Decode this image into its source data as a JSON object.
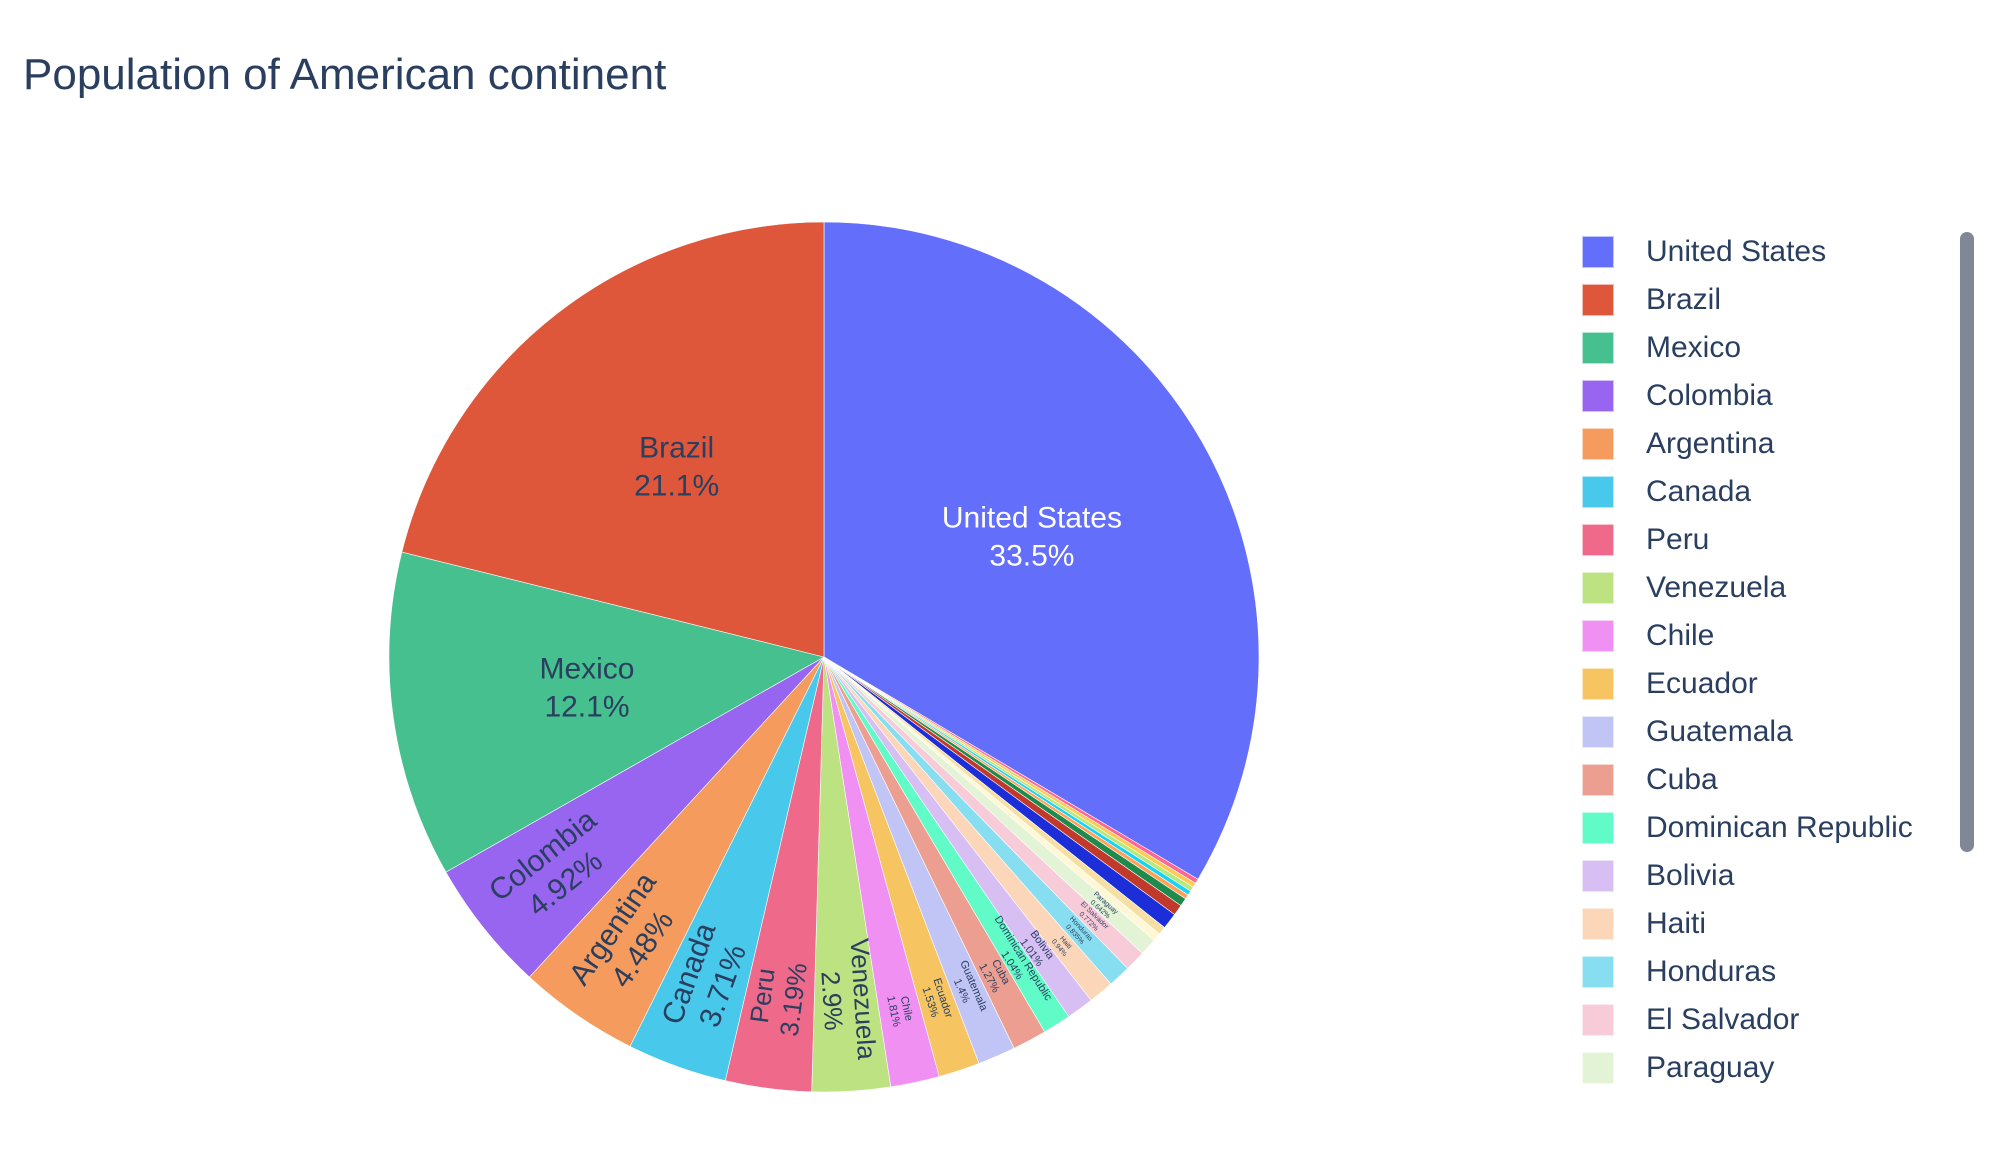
{
  "chart_data": {
    "type": "pie",
    "title": "Population of American continent",
    "direction": "clockwise",
    "start_angle_deg": 0,
    "slices": [
      {
        "label": "United States",
        "percent": 33.5,
        "text_label": "33.5%",
        "color": "#636efa",
        "text_color": "#ffffff",
        "label_mode": "inside"
      },
      {
        "label": "",
        "percent": 0.17,
        "color": "#ff6692",
        "label_mode": "none"
      },
      {
        "label": "",
        "percent": 0.17,
        "color": "#fecb52",
        "label_mode": "none"
      },
      {
        "label": "",
        "percent": 0.17,
        "color": "#b6e880",
        "label_mode": "none"
      },
      {
        "label": "",
        "percent": 0.17,
        "color": "#19d3f3",
        "label_mode": "none"
      },
      {
        "label": "",
        "percent": 0.17,
        "color": "#ffa15a",
        "label_mode": "none"
      },
      {
        "label": "",
        "percent": 0.3,
        "color": "#1e8a4c",
        "label_mode": "none"
      },
      {
        "label": "",
        "percent": 0.4,
        "color": "#c0392b",
        "label_mode": "none"
      },
      {
        "label": "",
        "percent": 0.6,
        "color": "#1c2ed8",
        "label_mode": "none"
      },
      {
        "label": "",
        "percent": 0.3,
        "color": "#f6dfa2",
        "label_mode": "none"
      },
      {
        "label": "",
        "percent": 0.3,
        "color": "#fff7d6",
        "label_mode": "none"
      },
      {
        "label": "Paraguay",
        "percent": 0.642,
        "text_label": "0.642%",
        "color": "#e2f4d5",
        "label_mode": "tiny"
      },
      {
        "label": "El Salvador",
        "percent": 0.772,
        "text_label": "0.772%",
        "color": "#f8cbd9",
        "label_mode": "tiny"
      },
      {
        "label": "Honduras",
        "percent": 0.835,
        "text_label": "0.835%",
        "color": "#87def0",
        "label_mode": "tiny"
      },
      {
        "label": "Haiti",
        "percent": 0.94,
        "text_label": "0.94%",
        "color": "#fcd6b8",
        "label_mode": "tiny"
      },
      {
        "label": "Bolivia",
        "percent": 1.01,
        "text_label": "1.01%",
        "color": "#d7bff4",
        "label_mode": "small"
      },
      {
        "label": "Dominican Republic",
        "percent": 1.04,
        "text_label": "1.04%",
        "color": "#60fbc6",
        "label_mode": "small"
      },
      {
        "label": "Cuba",
        "percent": 1.27,
        "text_label": "1.27%",
        "color": "#ec9f90",
        "label_mode": "small"
      },
      {
        "label": "Guatemala",
        "percent": 1.4,
        "text_label": "1.4%",
        "color": "#c1c5f6",
        "label_mode": "small"
      },
      {
        "label": "Ecuador",
        "percent": 1.53,
        "text_label": "1.53%",
        "color": "#f6c461",
        "label_mode": "small"
      },
      {
        "label": "Chile",
        "percent": 1.81,
        "text_label": "1.81%",
        "color": "#f090f3",
        "label_mode": "small"
      },
      {
        "label": "Venezuela",
        "percent": 2.9,
        "text_label": "2.9%",
        "color": "#bce282",
        "label_mode": "radial"
      },
      {
        "label": "Peru",
        "percent": 3.19,
        "text_label": "3.19%",
        "color": "#ef6a8a",
        "label_mode": "radial"
      },
      {
        "label": "Canada",
        "percent": 3.71,
        "text_label": "3.71%",
        "color": "#48c9ec",
        "label_mode": "radial"
      },
      {
        "label": "Argentina",
        "percent": 4.48,
        "text_label": "4.48%",
        "color": "#f59b5d",
        "label_mode": "radial"
      },
      {
        "label": "Colombia",
        "percent": 4.92,
        "text_label": "4.92%",
        "color": "#9765f0",
        "label_mode": "radial"
      },
      {
        "label": "Mexico",
        "percent": 12.1,
        "text_label": "12.1%",
        "color": "#46c08f",
        "text_color": "#2a3f5f",
        "label_mode": "inside"
      },
      {
        "label": "Brazil",
        "percent": 21.1,
        "text_label": "21.1%",
        "color": "#de573b",
        "text_color": "#2a3f5f",
        "label_mode": "inside"
      }
    ],
    "legend": {
      "position": "right",
      "scrollable": true,
      "items": [
        {
          "label": "United States",
          "color": "#636efa"
        },
        {
          "label": "Brazil",
          "color": "#de573b"
        },
        {
          "label": "Mexico",
          "color": "#46c08f"
        },
        {
          "label": "Colombia",
          "color": "#9765f0"
        },
        {
          "label": "Argentina",
          "color": "#f59b5d"
        },
        {
          "label": "Canada",
          "color": "#48c9ec"
        },
        {
          "label": "Peru",
          "color": "#ef6a8a"
        },
        {
          "label": "Venezuela",
          "color": "#bce282"
        },
        {
          "label": "Chile",
          "color": "#f090f3"
        },
        {
          "label": "Ecuador",
          "color": "#f6c461"
        },
        {
          "label": "Guatemala",
          "color": "#c1c5f6"
        },
        {
          "label": "Cuba",
          "color": "#ec9f90"
        },
        {
          "label": "Dominican Republic",
          "color": "#60fbc6"
        },
        {
          "label": "Bolivia",
          "color": "#d7bff4"
        },
        {
          "label": "Haiti",
          "color": "#fcd6b8"
        },
        {
          "label": "Honduras",
          "color": "#87def0"
        },
        {
          "label": "El Salvador",
          "color": "#f8cbd9"
        },
        {
          "label": "Paraguay",
          "color": "#e2f4d5"
        }
      ]
    }
  }
}
